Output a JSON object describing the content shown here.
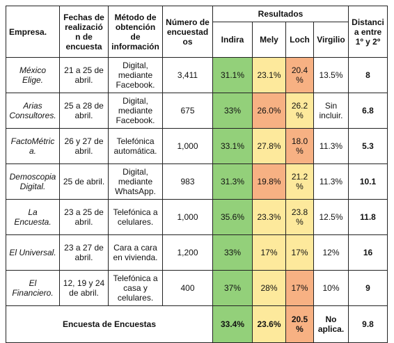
{
  "table": {
    "header": {
      "company": "Empresa.",
      "dates": "Fechas de realización de encuesta",
      "method": "Método de obtención de información",
      "count": "Número de encuestados",
      "results": "Resultados",
      "candidates": [
        "Indira",
        "Mely",
        "Loch",
        "Virgilio"
      ],
      "distance": "Distancia entre 1º y 2º"
    },
    "rows": [
      {
        "company": "México Elige.",
        "dates": "21 a 25 de abril.",
        "method": "Digital, mediante Facebook.",
        "count": "3,411",
        "results": [
          "31.1%",
          "23.1%",
          "20.4%",
          "13.5%"
        ],
        "colors": [
          "#93d07a",
          "#fde99c",
          "#f7b183"
        ],
        "distance": "8"
      },
      {
        "company": "Arias Consultores.",
        "dates": "25 a 28 de abril.",
        "method": "Digital, mediante Facebook.",
        "count": "675",
        "results": [
          "33%",
          "26.0%",
          "26.2%",
          "Sin incluir."
        ],
        "colors": [
          "#93d07a",
          "#f7b183",
          "#fde99c"
        ],
        "distance": "6.8"
      },
      {
        "company": "FactoMétrica.",
        "dates": "26 y 27 de abril.",
        "method": "Telefónica automática.",
        "count": "1,000",
        "results": [
          "33.1%",
          "27.8%",
          "18.0%",
          "11.3%"
        ],
        "colors": [
          "#93d07a",
          "#fde99c",
          "#f7b183"
        ],
        "distance": "5.3"
      },
      {
        "company": "Demoscopia Digital.",
        "dates": "25 de abril.",
        "method": "Digital, mediante WhatsApp.",
        "count": "983",
        "results": [
          "31.3%",
          "19.8%",
          "21.2%",
          "11.3%"
        ],
        "colors": [
          "#93d07a",
          "#f7b183",
          "#fde99c"
        ],
        "distance": "10.1"
      },
      {
        "company": "La Encuesta.",
        "dates": "23 a 25 de abril.",
        "method": "Telefónica a celulares.",
        "count": "1,000",
        "results": [
          "35.6%",
          "23.3%",
          "23.8%",
          "12.5%"
        ],
        "colors": [
          "#93d07a",
          "#fde99c",
          "#fde99c"
        ],
        "distance": "11.8"
      },
      {
        "company": "El Universal.",
        "dates": "23 a 27 de abril.",
        "method": "Cara a cara en vivienda.",
        "count": "1,200",
        "results": [
          "33%",
          "17%",
          "17%",
          "12%"
        ],
        "colors": [
          "#93d07a",
          "#fde99c",
          "#fde99c"
        ],
        "distance": "16"
      },
      {
        "company": "El Financiero.",
        "dates": "12, 19 y 24 de abril.",
        "method": "Telefónica a casa y celulares.",
        "count": "400",
        "results": [
          "37%",
          "28%",
          "17%",
          "10%"
        ],
        "colors": [
          "#93d07a",
          "#fde99c",
          "#f7b183"
        ],
        "distance": "9"
      }
    ],
    "summary": {
      "label": "Encuesta de Encuestas",
      "results": [
        "33.4%",
        "23.6%",
        "20.5%",
        "No aplica."
      ],
      "colors": [
        "#93d07a",
        "#fde99c",
        "#f7b183"
      ],
      "distance": "9.8"
    }
  }
}
